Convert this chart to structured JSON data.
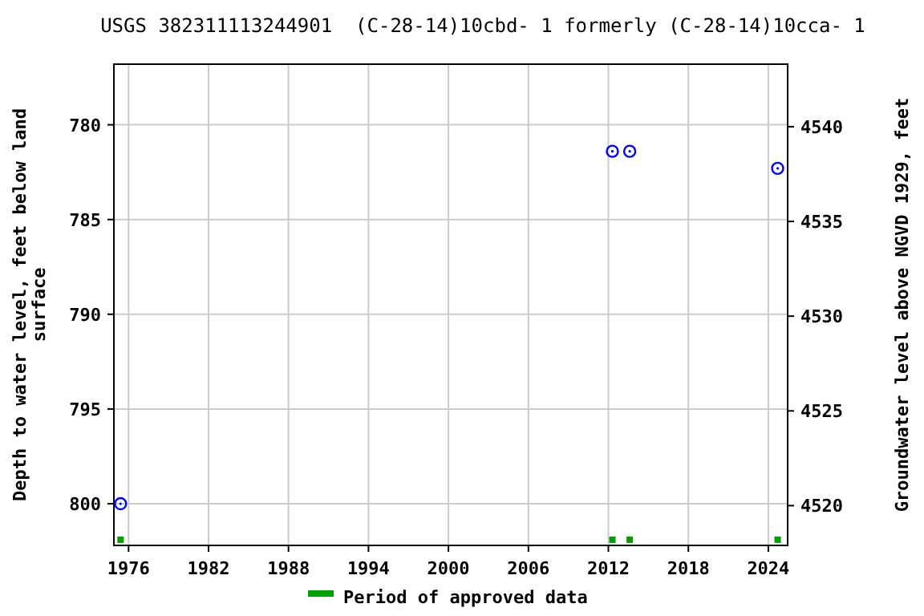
{
  "chart_data": {
    "type": "scatter",
    "title": "USGS 382311113244901  (C-28-14)10cbd- 1 formerly (C-28-14)10cca- 1",
    "ylabel": "Depth to water level, feet below land surface",
    "y2label": "Groundwater level above NGVD 1929, feet",
    "xlim": [
      1974.9,
      2025.45
    ],
    "xticks": [
      1976,
      1982,
      1988,
      1994,
      2000,
      2006,
      2012,
      2018,
      2024
    ],
    "ylim": [
      802.2,
      776.8
    ],
    "yticks": [
      780,
      785,
      790,
      795,
      800
    ],
    "y2lim": [
      4517.9,
      4543.3
    ],
    "y2ticks": [
      4520,
      4525,
      4530,
      4535,
      4540
    ],
    "grid": true,
    "legend": "bottom",
    "series": [
      {
        "color": "#0000ff",
        "marker": "circle",
        "x": [
          1975.4,
          2012.3,
          2013.6,
          2024.7
        ],
        "values": [
          800.0,
          781.4,
          781.4,
          782.3
        ]
      },
      {
        "name": "Period of approved data",
        "color": "#00a000",
        "marker": "square",
        "x": [
          1975.4,
          2012.3,
          2013.6,
          2024.7
        ],
        "values": [
          801.9,
          801.9,
          801.9,
          801.9
        ]
      }
    ]
  }
}
